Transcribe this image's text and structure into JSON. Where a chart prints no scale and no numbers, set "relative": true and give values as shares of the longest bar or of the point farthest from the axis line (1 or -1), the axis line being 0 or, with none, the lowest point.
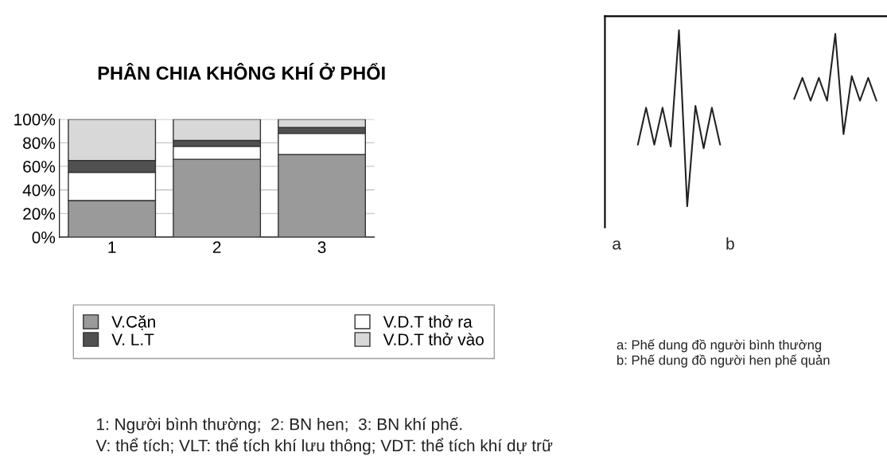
{
  "chart_data": [
    {
      "type": "bar",
      "stacked": true,
      "title": "PHÂN CHIA KHÔNG KHÍ Ở PHỔI",
      "categories": [
        "1",
        "2",
        "3"
      ],
      "series": [
        {
          "name": "V.Cặn",
          "color": "#9a9a9a",
          "values": [
            31,
            66,
            70
          ]
        },
        {
          "name": "V.D.T thở ra",
          "color": "#ffffff",
          "values": [
            24,
            11,
            18
          ]
        },
        {
          "name": "V. L.T",
          "color": "#505050",
          "values": [
            10,
            5,
            5
          ]
        },
        {
          "name": "V.D.T thở vào",
          "color": "#d8d8d8",
          "values": [
            35,
            18,
            7
          ]
        }
      ],
      "ylim": [
        0,
        100
      ],
      "yticks": [
        {
          "value": 0,
          "label": "0%"
        },
        {
          "value": 20,
          "label": "20%"
        },
        {
          "value": 40,
          "label": "40%"
        },
        {
          "value": 60,
          "label": "60%"
        },
        {
          "value": 80,
          "label": "80%"
        },
        {
          "value": 100,
          "label": "100%"
        }
      ],
      "grid": "y",
      "legend": "bottom",
      "annotations": [
        "1: Người bình thường;  2: BN hen;  3: BN khí phế.",
        "V: thể tích; VLT: thể tích khí lưu thông; VDT: thể tích khí dự trữ"
      ]
    },
    {
      "type": "line",
      "relative": true,
      "categories": [
        null,
        null,
        null,
        null,
        null,
        null,
        null,
        null,
        null,
        null,
        null,
        null,
        null,
        null,
        null,
        null,
        null,
        null,
        null,
        null,
        null,
        null,
        null,
        null,
        null,
        null,
        null,
        null,
        null,
        null
      ],
      "series": [
        {
          "color": "#222222",
          "values": [
            0.35,
            0.56,
            0.35,
            0.56,
            0.34,
            1,
            0,
            0.57,
            0.33,
            0.56,
            0.35,
            null,
            null,
            null,
            null,
            null,
            null,
            null,
            null,
            null,
            null,
            null,
            null,
            null,
            null,
            null,
            null,
            null,
            null,
            null
          ]
        },
        {
          "color": "#222222",
          "values": [
            null,
            null,
            null,
            null,
            null,
            null,
            null,
            null,
            null,
            null,
            null,
            null,
            null,
            null,
            null,
            null,
            null,
            null,
            null,
            0.61,
            0.73,
            0.6,
            0.73,
            0.6,
            0.98,
            0.41,
            0.74,
            0.6,
            0.73,
            0.6
          ]
        }
      ],
      "annotations": [
        "a",
        "b",
        "a: Phế dung đồ người bình thường",
        "b: Phế dung đồ người hen phế quản"
      ]
    }
  ]
}
